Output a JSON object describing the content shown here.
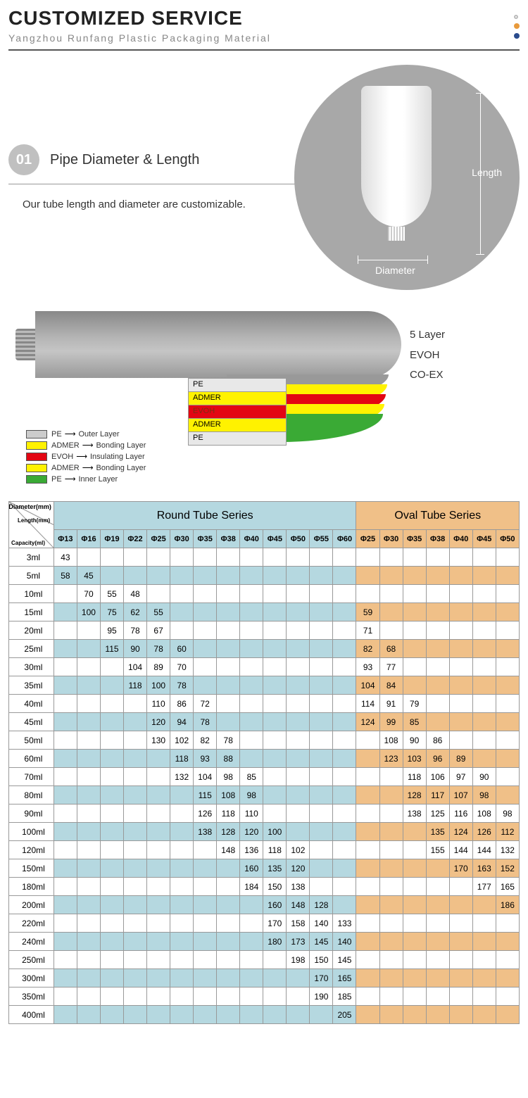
{
  "header": {
    "title": "CUSTOMIZED SERVICE",
    "subtitle": "Yangzhou Runfang Plastic Packaging Material"
  },
  "section1": {
    "number": "01",
    "title": "Pipe Diameter & Length",
    "desc": "Our tube length and diameter are customizable.",
    "length_label": "Length",
    "diameter_label": "Diameter"
  },
  "layers": {
    "side_labels": [
      "5 Layer",
      "EVOH",
      "CO-EX"
    ],
    "legend": [
      {
        "swatch": "sw-pe",
        "name": "PE",
        "role": "Outer Layer"
      },
      {
        "swatch": "sw-admer",
        "name": "ADMER",
        "role": "Bonding Layer"
      },
      {
        "swatch": "sw-evoh",
        "name": "EVOH",
        "role": "Insulating Layer"
      },
      {
        "swatch": "sw-admer",
        "name": "ADMER",
        "role": "Bonding Layer"
      },
      {
        "swatch": "sw-pe2",
        "name": "PE",
        "role": "Inner Layer"
      }
    ],
    "box_labels": [
      "PE",
      "ADMER",
      "EVOH",
      "ADMER",
      "PE"
    ]
  },
  "table": {
    "round_header": "Round Tube Series",
    "oval_header": "Oval Tube Series",
    "corner": {
      "top": "Diameter(mm)",
      "mid": "Length(mm)",
      "bot": "Capacity(ml)"
    },
    "round_cols": [
      "Φ13",
      "Φ16",
      "Φ19",
      "Φ22",
      "Φ25",
      "Φ30",
      "Φ35",
      "Φ38",
      "Φ40",
      "Φ45",
      "Φ50",
      "Φ55",
      "Φ60"
    ],
    "oval_cols": [
      "Φ25",
      "Φ30",
      "Φ35",
      "Φ38",
      "Φ40",
      "Φ45",
      "Φ50"
    ],
    "rows": [
      {
        "cap": "3ml",
        "shade": "w",
        "r": [
          "43",
          "",
          "",
          "",
          "",
          "",
          "",
          "",
          "",
          "",
          "",
          "",
          ""
        ],
        "o": [
          "",
          "",
          "",
          "",
          "",
          "",
          ""
        ]
      },
      {
        "cap": "5ml",
        "shade": "r",
        "r": [
          "58",
          "45",
          "",
          "",
          "",
          "",
          "",
          "",
          "",
          "",
          "",
          "",
          ""
        ],
        "o": [
          "",
          "",
          "",
          "",
          "",
          "",
          ""
        ]
      },
      {
        "cap": "10ml",
        "shade": "w",
        "r": [
          "",
          "70",
          "55",
          "48",
          "",
          "",
          "",
          "",
          "",
          "",
          "",
          "",
          ""
        ],
        "o": [
          "",
          "",
          "",
          "",
          "",
          "",
          ""
        ]
      },
      {
        "cap": "15ml",
        "shade": "r",
        "r": [
          "",
          "100",
          "75",
          "62",
          "55",
          "",
          "",
          "",
          "",
          "",
          "",
          "",
          ""
        ],
        "o": [
          "59",
          "",
          "",
          "",
          "",
          "",
          ""
        ]
      },
      {
        "cap": "20ml",
        "shade": "w",
        "r": [
          "",
          "",
          "95",
          "78",
          "67",
          "",
          "",
          "",
          "",
          "",
          "",
          "",
          ""
        ],
        "o": [
          "71",
          "",
          "",
          "",
          "",
          "",
          ""
        ]
      },
      {
        "cap": "25ml",
        "shade": "r",
        "r": [
          "",
          "",
          "115",
          "90",
          "78",
          "60",
          "",
          "",
          "",
          "",
          "",
          "",
          ""
        ],
        "o": [
          "82",
          "68",
          "",
          "",
          "",
          "",
          ""
        ]
      },
      {
        "cap": "30ml",
        "shade": "w",
        "r": [
          "",
          "",
          "",
          "104",
          "89",
          "70",
          "",
          "",
          "",
          "",
          "",
          "",
          ""
        ],
        "o": [
          "93",
          "77",
          "",
          "",
          "",
          "",
          ""
        ]
      },
      {
        "cap": "35ml",
        "shade": "r",
        "r": [
          "",
          "",
          "",
          "118",
          "100",
          "78",
          "",
          "",
          "",
          "",
          "",
          "",
          ""
        ],
        "o": [
          "104",
          "84",
          "",
          "",
          "",
          "",
          ""
        ]
      },
      {
        "cap": "40ml",
        "shade": "w",
        "r": [
          "",
          "",
          "",
          "",
          "110",
          "86",
          "72",
          "",
          "",
          "",
          "",
          "",
          ""
        ],
        "o": [
          "114",
          "91",
          "79",
          "",
          "",
          "",
          ""
        ]
      },
      {
        "cap": "45ml",
        "shade": "r",
        "r": [
          "",
          "",
          "",
          "",
          "120",
          "94",
          "78",
          "",
          "",
          "",
          "",
          "",
          ""
        ],
        "o": [
          "124",
          "99",
          "85",
          "",
          "",
          "",
          ""
        ]
      },
      {
        "cap": "50ml",
        "shade": "w",
        "r": [
          "",
          "",
          "",
          "",
          "130",
          "102",
          "82",
          "78",
          "",
          "",
          "",
          "",
          ""
        ],
        "o": [
          "",
          "108",
          "90",
          "86",
          "",
          "",
          ""
        ]
      },
      {
        "cap": "60ml",
        "shade": "r",
        "r": [
          "",
          "",
          "",
          "",
          "",
          "118",
          "93",
          "88",
          "",
          "",
          "",
          "",
          ""
        ],
        "o": [
          "",
          "123",
          "103",
          "96",
          "89",
          "",
          ""
        ]
      },
      {
        "cap": "70ml",
        "shade": "w",
        "r": [
          "",
          "",
          "",
          "",
          "",
          "132",
          "104",
          "98",
          "85",
          "",
          "",
          "",
          ""
        ],
        "o": [
          "",
          "",
          "118",
          "106",
          "97",
          "90",
          ""
        ]
      },
      {
        "cap": "80ml",
        "shade": "r",
        "r": [
          "",
          "",
          "",
          "",
          "",
          "",
          "115",
          "108",
          "98",
          "",
          "",
          "",
          ""
        ],
        "o": [
          "",
          "",
          "128",
          "117",
          "107",
          "98",
          ""
        ]
      },
      {
        "cap": "90ml",
        "shade": "w",
        "r": [
          "",
          "",
          "",
          "",
          "",
          "",
          "126",
          "118",
          "110",
          "",
          "",
          "",
          ""
        ],
        "o": [
          "",
          "",
          "138",
          "125",
          "116",
          "108",
          "98"
        ]
      },
      {
        "cap": "100ml",
        "shade": "r",
        "r": [
          "",
          "",
          "",
          "",
          "",
          "",
          "138",
          "128",
          "120",
          "100",
          "",
          "",
          ""
        ],
        "o": [
          "",
          "",
          "",
          "135",
          "124",
          "126",
          "112"
        ]
      },
      {
        "cap": "120ml",
        "shade": "w",
        "r": [
          "",
          "",
          "",
          "",
          "",
          "",
          "",
          "148",
          "136",
          "118",
          "102",
          "",
          ""
        ],
        "o": [
          "",
          "",
          "",
          "155",
          "144",
          "144",
          "132"
        ]
      },
      {
        "cap": "150ml",
        "shade": "r",
        "r": [
          "",
          "",
          "",
          "",
          "",
          "",
          "",
          "",
          "160",
          "135",
          "120",
          "",
          ""
        ],
        "o": [
          "",
          "",
          "",
          "",
          "170",
          "163",
          "152"
        ]
      },
      {
        "cap": "180ml",
        "shade": "w",
        "r": [
          "",
          "",
          "",
          "",
          "",
          "",
          "",
          "",
          "184",
          "150",
          "138",
          "",
          ""
        ],
        "o": [
          "",
          "",
          "",
          "",
          "",
          "177",
          "165"
        ]
      },
      {
        "cap": "200ml",
        "shade": "r",
        "r": [
          "",
          "",
          "",
          "",
          "",
          "",
          "",
          "",
          "",
          "160",
          "148",
          "128",
          ""
        ],
        "o": [
          "",
          "",
          "",
          "",
          "",
          "",
          "186"
        ]
      },
      {
        "cap": "220ml",
        "shade": "w",
        "r": [
          "",
          "",
          "",
          "",
          "",
          "",
          "",
          "",
          "",
          "170",
          "158",
          "140",
          "133"
        ],
        "o": [
          "",
          "",
          "",
          "",
          "",
          "",
          ""
        ]
      },
      {
        "cap": "240ml",
        "shade": "r",
        "r": [
          "",
          "",
          "",
          "",
          "",
          "",
          "",
          "",
          "",
          "180",
          "173",
          "145",
          "140"
        ],
        "o": [
          "",
          "",
          "",
          "",
          "",
          "",
          ""
        ]
      },
      {
        "cap": "250ml",
        "shade": "w",
        "r": [
          "",
          "",
          "",
          "",
          "",
          "",
          "",
          "",
          "",
          "",
          "198",
          "150",
          "145"
        ],
        "o": [
          "",
          "",
          "",
          "",
          "",
          "",
          ""
        ]
      },
      {
        "cap": "300ml",
        "shade": "r",
        "r": [
          "",
          "",
          "",
          "",
          "",
          "",
          "",
          "",
          "",
          "",
          "",
          "170",
          "165"
        ],
        "o": [
          "",
          "",
          "",
          "",
          "",
          "",
          ""
        ]
      },
      {
        "cap": "350ml",
        "shade": "w",
        "r": [
          "",
          "",
          "",
          "",
          "",
          "",
          "",
          "",
          "",
          "",
          "",
          "190",
          "185"
        ],
        "o": [
          "",
          "",
          "",
          "",
          "",
          "",
          ""
        ]
      },
      {
        "cap": "400ml",
        "shade": "r",
        "r": [
          "",
          "",
          "",
          "",
          "",
          "",
          "",
          "",
          "",
          "",
          "",
          "",
          "205"
        ],
        "o": [
          "",
          "",
          "",
          "",
          "",
          "",
          ""
        ]
      }
    ]
  }
}
